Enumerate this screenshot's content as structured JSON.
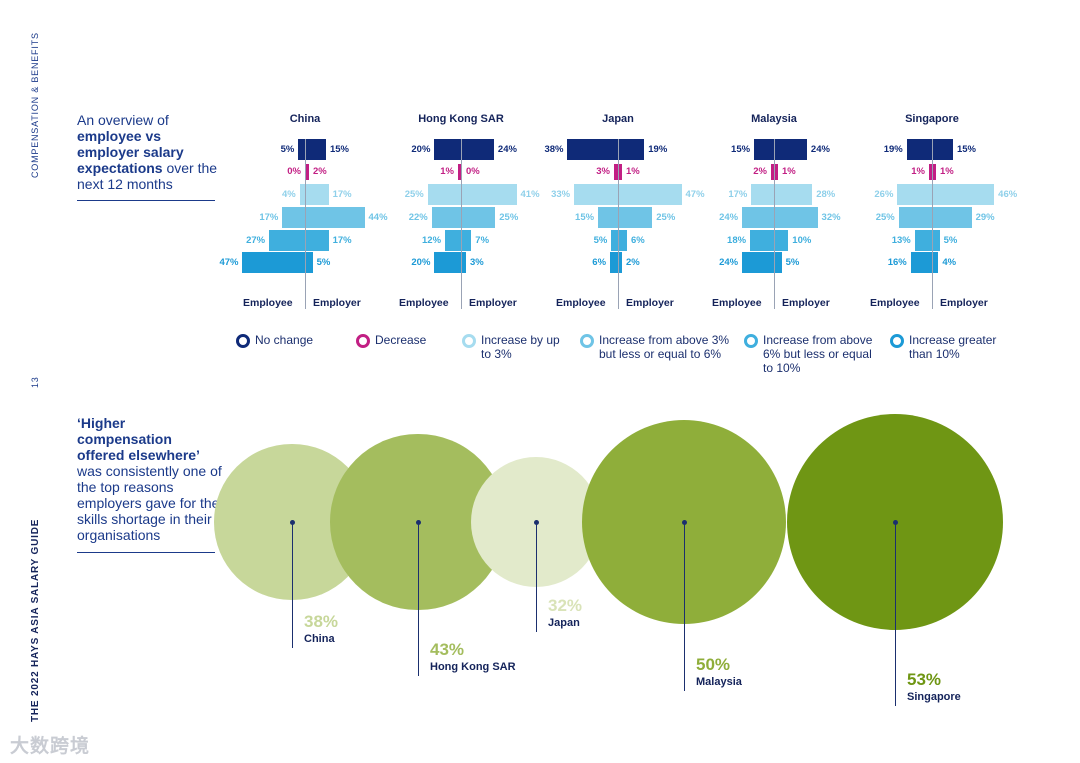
{
  "side_labels": {
    "top": "COMPENSATION & BENEFITS",
    "page_number": "13",
    "bottom": "THE 2022 HAYS ASIA SALARY GUIDE"
  },
  "intro1": {
    "lead": "An overview of",
    "bold": "employee vs employer salary expectations",
    "tail": "over the next 12 months"
  },
  "intro2": {
    "bold": "‘Higher compensation offered elsewhere’",
    "tail": "was consistently one of the top reasons employers gave for the skills shortage in their organisations"
  },
  "colors": {
    "no_change": "#0f2a78",
    "decrease": "#c21f84",
    "up_to_3": "#a6dcef",
    "3_to_6": "#6fc4e6",
    "6_to_10": "#3fafde",
    "over_10": "#1c9ad6"
  },
  "legend": [
    {
      "key": "no_change",
      "label": "No change"
    },
    {
      "key": "decrease",
      "label": "Decrease"
    },
    {
      "key": "up_to_3",
      "label": "Increase by up to 3%"
    },
    {
      "key": "3_to_6",
      "label": "Increase from above 3% but less or equal to 6%"
    },
    {
      "key": "6_to_10",
      "label": "Increase from above 6% but less or equal to 10%"
    },
    {
      "key": "over_10",
      "label": "Increase greater than 10%"
    }
  ],
  "chart_data": [
    {
      "type": "bar",
      "subtype": "butterfly",
      "categories": [
        "No change",
        "Decrease",
        "Increase by up to 3%",
        "Increase from above 3% but less or equal to 6%",
        "Increase from above 6% but less or equal to 10%",
        "Increase greater than 10%"
      ],
      "side_labels": {
        "left": "Employee",
        "right": "Employer"
      },
      "panels": [
        {
          "country": "China",
          "employee": [
            5,
            0,
            4,
            17,
            27,
            47
          ],
          "employer": [
            15,
            2,
            17,
            44,
            17,
            5
          ]
        },
        {
          "country": "Hong Kong SAR",
          "employee": [
            20,
            1,
            25,
            22,
            12,
            20
          ],
          "employer": [
            24,
            0,
            41,
            25,
            7,
            3
          ]
        },
        {
          "country": "Japan",
          "employee": [
            38,
            3,
            33,
            15,
            5,
            6
          ],
          "employer": [
            19,
            1,
            47,
            25,
            6,
            2
          ]
        },
        {
          "country": "Malaysia",
          "employee": [
            15,
            2,
            17,
            24,
            18,
            24
          ],
          "employer": [
            24,
            1,
            28,
            32,
            10,
            5
          ]
        },
        {
          "country": "Singapore",
          "employee": [
            19,
            1,
            26,
            25,
            13,
            16
          ],
          "employer": [
            15,
            1,
            46,
            29,
            5,
            4
          ]
        }
      ]
    },
    {
      "type": "bubble",
      "colors": [
        "#c7d79a",
        "#a4bd5e",
        "#e2eacb",
        "#8fae3a",
        "#6f9614"
      ],
      "points": [
        {
          "label": "China",
          "value": 38
        },
        {
          "label": "Hong Kong SAR",
          "value": 43
        },
        {
          "label": "Japan",
          "value": 32
        },
        {
          "label": "Malaysia",
          "value": 50
        },
        {
          "label": "Singapore",
          "value": 53
        }
      ]
    }
  ],
  "watermark": "大数跨境"
}
